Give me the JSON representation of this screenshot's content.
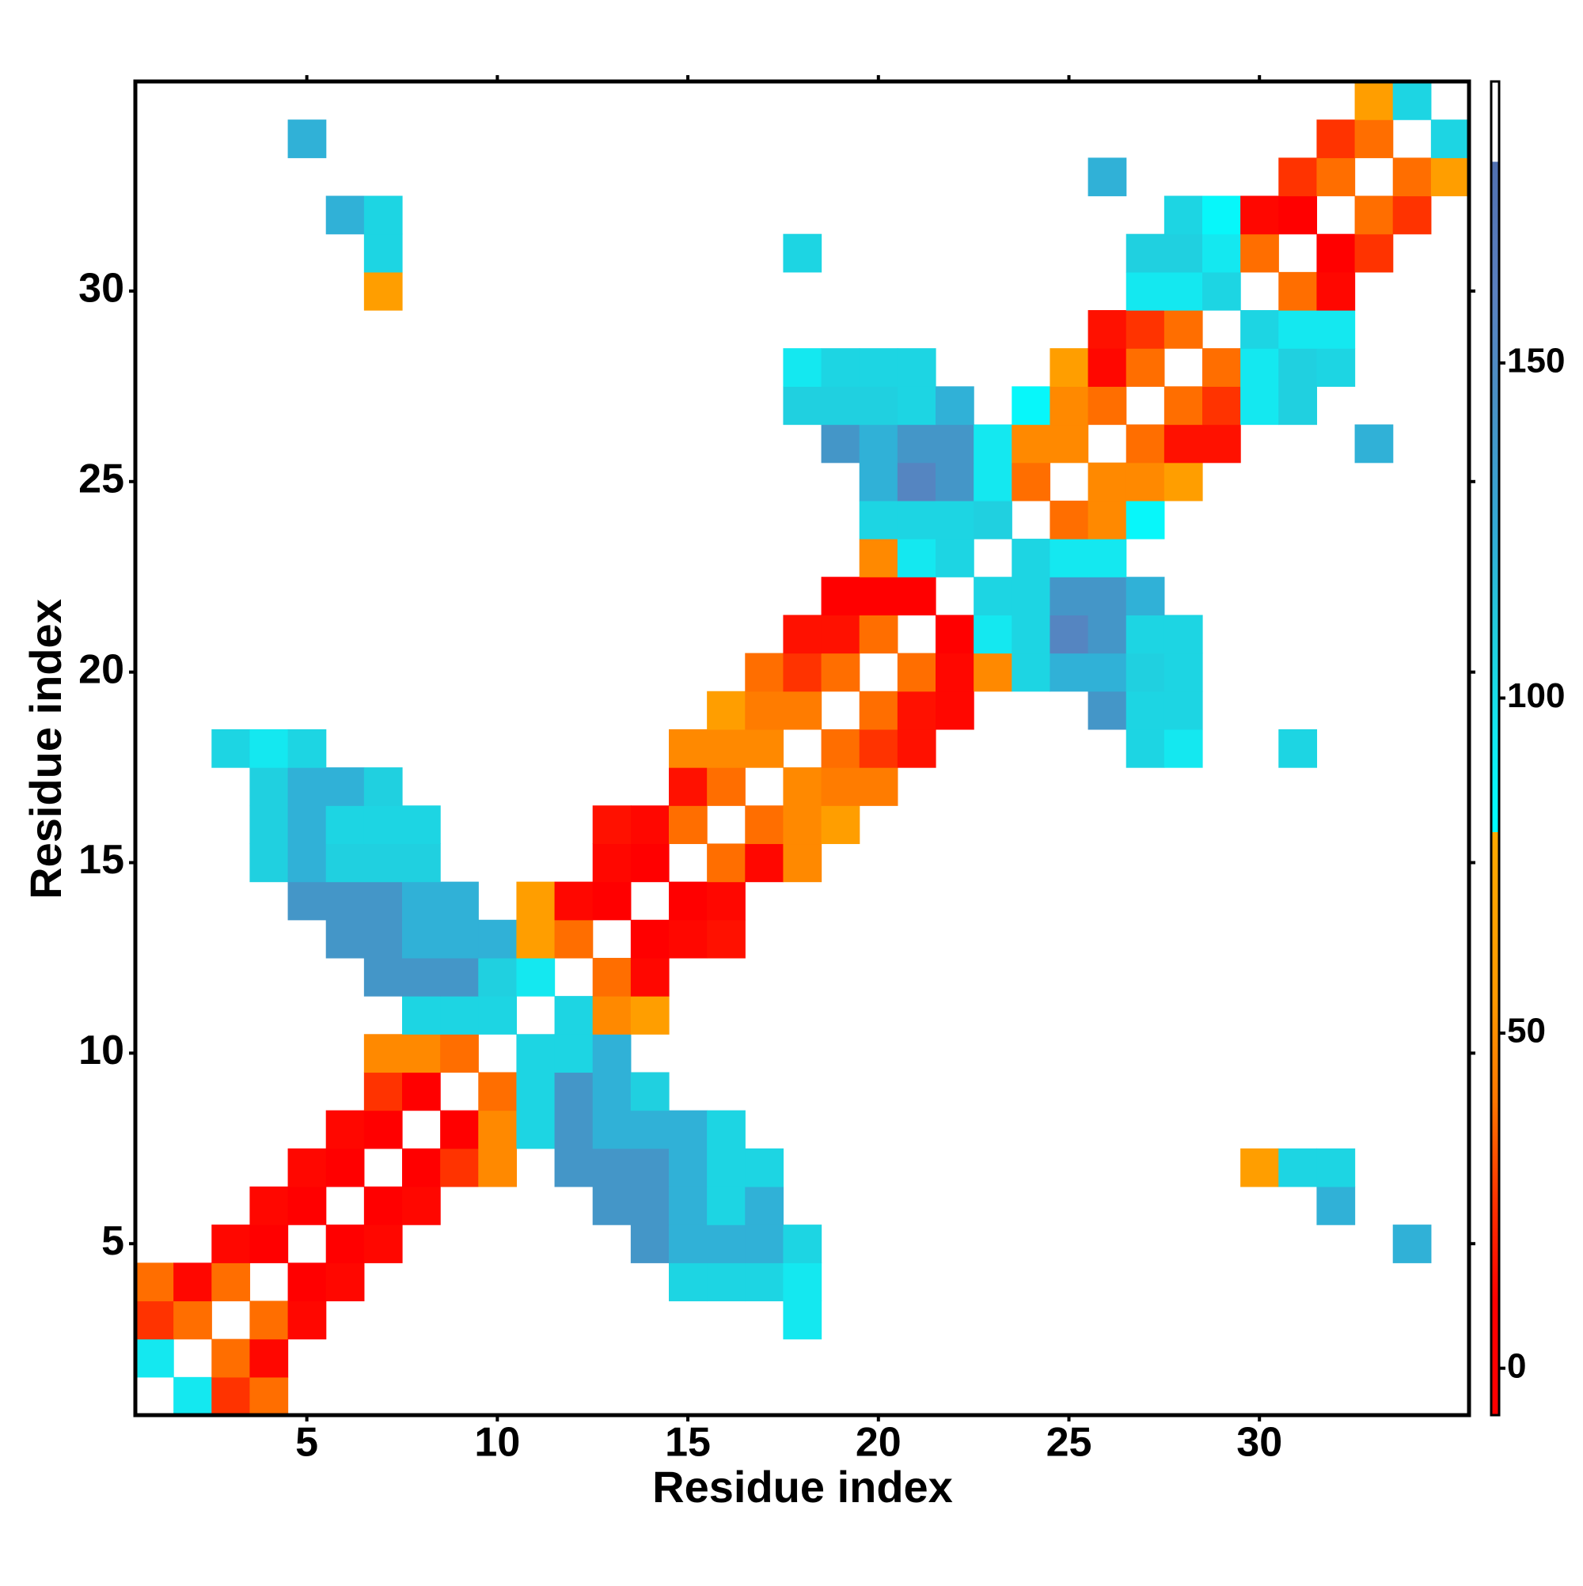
{
  "chart_data": {
    "type": "heatmap",
    "xlabel": "Residue index",
    "ylabel": "Residue index",
    "x": [
      1,
      2,
      3,
      4,
      5,
      6,
      7,
      8,
      9,
      10,
      11,
      12,
      13,
      14,
      15,
      16,
      17,
      18,
      19,
      20,
      21,
      22,
      23,
      24,
      25,
      26,
      27,
      28,
      29,
      30,
      31,
      32,
      33,
      34,
      35
    ],
    "y": [
      1,
      2,
      3,
      4,
      5,
      6,
      7,
      8,
      9,
      10,
      11,
      12,
      13,
      14,
      15,
      16,
      17,
      18,
      19,
      20,
      21,
      22,
      23,
      24,
      25,
      26,
      27,
      28,
      29,
      30,
      31,
      32,
      33,
      34,
      35
    ],
    "xlim": [
      0.5,
      35.5
    ],
    "ylim": [
      0.5,
      35.5
    ],
    "xticks": [
      5,
      10,
      15,
      20,
      25,
      30
    ],
    "yticks": [
      5,
      10,
      15,
      20,
      25,
      30
    ],
    "zlim": [
      -7,
      192
    ],
    "cticks": [
      0,
      50,
      100,
      150
    ],
    "colorscale": [
      [
        -7,
        "#ff0000"
      ],
      [
        10,
        "#ff0000"
      ],
      [
        25,
        "#ff3300"
      ],
      [
        40,
        "#ff7700"
      ],
      [
        55,
        "#ff9900"
      ],
      [
        80,
        "#ffaa00"
      ],
      [
        80,
        "#00ffff"
      ],
      [
        95,
        "#14e8f0"
      ],
      [
        110,
        "#22ccdd"
      ],
      [
        125,
        "#33aad5"
      ],
      [
        145,
        "#4a8fc4"
      ],
      [
        160,
        "#5a80c0"
      ],
      [
        180,
        "#5070b0"
      ],
      [
        180,
        "#ffffff"
      ],
      [
        192,
        "#ffffff"
      ]
    ],
    "z": [
      [
        null,
        95,
        25,
        38,
        null,
        null,
        null,
        null,
        null,
        null,
        null,
        null,
        null,
        null,
        null,
        null,
        null,
        null,
        null,
        null,
        null,
        null,
        null,
        null,
        null,
        null,
        null,
        null,
        null,
        null,
        null,
        null,
        null,
        null,
        null
      ],
      [
        95,
        null,
        38,
        12,
        null,
        null,
        null,
        null,
        null,
        null,
        null,
        null,
        null,
        null,
        null,
        null,
        null,
        null,
        null,
        null,
        null,
        null,
        null,
        null,
        null,
        null,
        null,
        null,
        null,
        null,
        null,
        null,
        null,
        null,
        null
      ],
      [
        25,
        38,
        null,
        38,
        12,
        null,
        null,
        null,
        null,
        null,
        null,
        null,
        null,
        null,
        null,
        null,
        null,
        95,
        null,
        null,
        null,
        null,
        null,
        null,
        null,
        null,
        null,
        null,
        null,
        null,
        null,
        null,
        null,
        null,
        null
      ],
      [
        38,
        12,
        38,
        null,
        5,
        12,
        null,
        null,
        null,
        null,
        null,
        null,
        null,
        null,
        105,
        105,
        105,
        95,
        null,
        null,
        null,
        null,
        null,
        null,
        null,
        null,
        null,
        null,
        null,
        null,
        null,
        null,
        null,
        null,
        null
      ],
      [
        null,
        null,
        12,
        5,
        null,
        5,
        12,
        null,
        null,
        null,
        null,
        null,
        null,
        140,
        122,
        122,
        122,
        105,
        null,
        null,
        null,
        null,
        null,
        null,
        null,
        null,
        null,
        null,
        null,
        null,
        null,
        null,
        null,
        122,
        null
      ],
      [
        null,
        null,
        null,
        12,
        5,
        null,
        5,
        12,
        null,
        null,
        null,
        null,
        140,
        140,
        122,
        105,
        122,
        null,
        null,
        null,
        null,
        null,
        null,
        null,
        null,
        null,
        null,
        null,
        null,
        null,
        null,
        122,
        null,
        null,
        null
      ],
      [
        null,
        null,
        null,
        null,
        12,
        5,
        null,
        5,
        25,
        48,
        null,
        140,
        140,
        140,
        122,
        105,
        105,
        null,
        null,
        null,
        null,
        null,
        null,
        null,
        null,
        null,
        null,
        null,
        null,
        62,
        105,
        105,
        null,
        null,
        null
      ],
      [
        null,
        null,
        null,
        null,
        null,
        12,
        5,
        null,
        5,
        48,
        105,
        140,
        122,
        122,
        122,
        105,
        null,
        null,
        null,
        null,
        null,
        null,
        null,
        null,
        null,
        null,
        null,
        null,
        null,
        null,
        null,
        null,
        null,
        null,
        null
      ],
      [
        null,
        null,
        null,
        null,
        null,
        null,
        25,
        5,
        null,
        38,
        105,
        140,
        122,
        108,
        null,
        null,
        null,
        null,
        null,
        null,
        null,
        null,
        null,
        null,
        null,
        null,
        null,
        null,
        null,
        null,
        null,
        null,
        null,
        null,
        null
      ],
      [
        null,
        null,
        null,
        null,
        null,
        null,
        48,
        48,
        38,
        null,
        105,
        105,
        122,
        null,
        null,
        null,
        null,
        null,
        null,
        null,
        null,
        null,
        null,
        null,
        null,
        null,
        null,
        null,
        null,
        null,
        null,
        null,
        null,
        null,
        null
      ],
      [
        null,
        null,
        null,
        null,
        null,
        null,
        null,
        105,
        105,
        105,
        null,
        105,
        48,
        62,
        null,
        null,
        null,
        null,
        null,
        null,
        null,
        null,
        null,
        null,
        null,
        null,
        null,
        null,
        null,
        null,
        null,
        null,
        null,
        null,
        null
      ],
      [
        null,
        null,
        null,
        null,
        null,
        null,
        140,
        140,
        140,
        108,
        95,
        null,
        38,
        12,
        null,
        null,
        null,
        null,
        null,
        null,
        null,
        null,
        null,
        null,
        null,
        null,
        null,
        null,
        null,
        null,
        null,
        null,
        null,
        null,
        null
      ],
      [
        null,
        null,
        null,
        null,
        null,
        140,
        140,
        122,
        122,
        122,
        62,
        38,
        null,
        5,
        12,
        15,
        null,
        null,
        null,
        null,
        null,
        null,
        null,
        null,
        null,
        null,
        null,
        null,
        null,
        null,
        null,
        null,
        null,
        null,
        null
      ],
      [
        null,
        null,
        null,
        null,
        140,
        140,
        140,
        122,
        122,
        null,
        62,
        12,
        5,
        null,
        5,
        12,
        null,
        null,
        null,
        null,
        null,
        null,
        null,
        null,
        null,
        null,
        null,
        null,
        null,
        null,
        null,
        null,
        null,
        null,
        null
      ],
      [
        null,
        null,
        null,
        108,
        122,
        108,
        108,
        108,
        null,
        null,
        null,
        null,
        12,
        5,
        null,
        38,
        12,
        48,
        null,
        null,
        null,
        null,
        null,
        null,
        null,
        null,
        null,
        null,
        null,
        null,
        null,
        null,
        null,
        null,
        null
      ],
      [
        null,
        null,
        null,
        108,
        122,
        105,
        105,
        105,
        null,
        null,
        null,
        null,
        15,
        12,
        38,
        null,
        38,
        48,
        62,
        null,
        null,
        null,
        null,
        null,
        null,
        null,
        null,
        null,
        null,
        null,
        null,
        null,
        null,
        null,
        null
      ],
      [
        null,
        null,
        null,
        108,
        122,
        122,
        108,
        null,
        null,
        null,
        null,
        null,
        null,
        null,
        15,
        38,
        null,
        48,
        42,
        42,
        null,
        null,
        null,
        null,
        null,
        null,
        null,
        null,
        null,
        null,
        null,
        null,
        null,
        null,
        null
      ],
      [
        null,
        null,
        105,
        95,
        105,
        null,
        null,
        null,
        null,
        null,
        null,
        null,
        null,
        null,
        48,
        48,
        48,
        null,
        38,
        25,
        15,
        null,
        null,
        null,
        null,
        null,
        105,
        95,
        null,
        null,
        105,
        null,
        null,
        null,
        null
      ],
      [
        null,
        null,
        null,
        null,
        null,
        null,
        null,
        null,
        null,
        null,
        null,
        null,
        null,
        null,
        null,
        62,
        42,
        42,
        null,
        38,
        15,
        12,
        null,
        null,
        null,
        140,
        105,
        105,
        null,
        null,
        null,
        null,
        null,
        null,
        null
      ],
      [
        null,
        null,
        null,
        null,
        null,
        null,
        null,
        null,
        null,
        null,
        null,
        null,
        null,
        null,
        null,
        null,
        38,
        25,
        38,
        null,
        38,
        12,
        48,
        105,
        122,
        122,
        108,
        105,
        null,
        null,
        null,
        null,
        null,
        null,
        null
      ],
      [
        null,
        null,
        null,
        null,
        null,
        null,
        null,
        null,
        null,
        null,
        null,
        null,
        null,
        null,
        null,
        null,
        null,
        15,
        15,
        38,
        null,
        5,
        95,
        105,
        155,
        140,
        105,
        105,
        null,
        null,
        null,
        null,
        null,
        null,
        null
      ],
      [
        null,
        null,
        null,
        null,
        null,
        null,
        null,
        null,
        null,
        null,
        null,
        null,
        null,
        null,
        null,
        null,
        null,
        null,
        8,
        8,
        5,
        null,
        105,
        105,
        140,
        140,
        122,
        null,
        null,
        null,
        null,
        null,
        null,
        null,
        null
      ],
      [
        null,
        null,
        null,
        null,
        null,
        null,
        null,
        null,
        null,
        null,
        null,
        null,
        null,
        null,
        null,
        null,
        null,
        null,
        null,
        48,
        95,
        105,
        null,
        105,
        95,
        95,
        null,
        null,
        null,
        null,
        null,
        null,
        null,
        null,
        null
      ],
      [
        null,
        null,
        null,
        null,
        null,
        null,
        null,
        null,
        null,
        null,
        null,
        null,
        null,
        null,
        null,
        null,
        null,
        null,
        null,
        105,
        105,
        105,
        108,
        null,
        38,
        48,
        85,
        null,
        null,
        null,
        null,
        null,
        null,
        null,
        null
      ],
      [
        null,
        null,
        null,
        null,
        null,
        null,
        null,
        null,
        null,
        null,
        null,
        null,
        null,
        null,
        null,
        null,
        null,
        null,
        null,
        122,
        155,
        140,
        95,
        38,
        null,
        48,
        48,
        62,
        null,
        null,
        null,
        null,
        null,
        null,
        null
      ],
      [
        null,
        null,
        null,
        null,
        null,
        null,
        null,
        null,
        null,
        null,
        null,
        null,
        null,
        null,
        null,
        null,
        null,
        null,
        140,
        122,
        140,
        140,
        95,
        48,
        48,
        null,
        38,
        15,
        15,
        null,
        null,
        null,
        122,
        null,
        null
      ],
      [
        null,
        null,
        null,
        null,
        null,
        null,
        null,
        null,
        null,
        null,
        null,
        null,
        null,
        null,
        null,
        null,
        null,
        108,
        108,
        108,
        105,
        122,
        null,
        85,
        48,
        38,
        null,
        38,
        25,
        95,
        108,
        null,
        null,
        null,
        null
      ],
      [
        null,
        null,
        null,
        null,
        null,
        null,
        null,
        null,
        null,
        null,
        null,
        null,
        null,
        null,
        null,
        null,
        null,
        95,
        105,
        105,
        105,
        null,
        null,
        null,
        62,
        12,
        38,
        null,
        38,
        95,
        108,
        105,
        null,
        null,
        null
      ],
      [
        null,
        null,
        null,
        null,
        null,
        null,
        null,
        null,
        null,
        null,
        null,
        null,
        null,
        null,
        null,
        null,
        null,
        null,
        null,
        null,
        null,
        null,
        null,
        null,
        null,
        15,
        25,
        38,
        null,
        105,
        95,
        95,
        null,
        null,
        null
      ],
      [
        null,
        null,
        null,
        null,
        null,
        null,
        62,
        null,
        null,
        null,
        null,
        null,
        null,
        null,
        null,
        null,
        null,
        null,
        null,
        null,
        null,
        null,
        null,
        null,
        null,
        null,
        95,
        95,
        105,
        null,
        38,
        12,
        null,
        null,
        null
      ],
      [
        null,
        null,
        null,
        null,
        null,
        null,
        105,
        null,
        null,
        null,
        null,
        null,
        null,
        null,
        null,
        null,
        null,
        105,
        null,
        null,
        null,
        null,
        null,
        null,
        null,
        null,
        108,
        108,
        95,
        38,
        null,
        5,
        25,
        null,
        null
      ],
      [
        null,
        null,
        null,
        null,
        null,
        122,
        105,
        null,
        null,
        null,
        null,
        null,
        null,
        null,
        null,
        null,
        null,
        null,
        null,
        null,
        null,
        null,
        null,
        null,
        null,
        null,
        null,
        105,
        85,
        12,
        5,
        null,
        38,
        25,
        null
      ],
      [
        null,
        null,
        null,
        null,
        null,
        null,
        null,
        null,
        null,
        null,
        null,
        null,
        null,
        null,
        null,
        null,
        null,
        null,
        null,
        null,
        null,
        null,
        null,
        null,
        null,
        122,
        null,
        null,
        null,
        null,
        25,
        38,
        null,
        38,
        62
      ],
      [
        null,
        null,
        null,
        null,
        122,
        null,
        null,
        null,
        null,
        null,
        null,
        null,
        null,
        null,
        null,
        null,
        null,
        null,
        null,
        null,
        null,
        null,
        null,
        null,
        null,
        null,
        null,
        null,
        null,
        null,
        null,
        25,
        38,
        null,
        105
      ],
      [
        null,
        null,
        null,
        null,
        null,
        null,
        null,
        null,
        null,
        null,
        null,
        null,
        null,
        null,
        null,
        null,
        null,
        null,
        null,
        null,
        null,
        null,
        null,
        null,
        null,
        null,
        null,
        null,
        null,
        null,
        null,
        null,
        62,
        105,
        null
      ]
    ]
  }
}
